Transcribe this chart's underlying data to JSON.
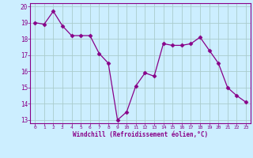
{
  "x": [
    0,
    1,
    2,
    3,
    4,
    5,
    6,
    7,
    8,
    9,
    10,
    11,
    12,
    13,
    14,
    15,
    16,
    17,
    18,
    19,
    20,
    21,
    22,
    23
  ],
  "y": [
    19.0,
    18.9,
    19.7,
    18.8,
    18.2,
    18.2,
    18.2,
    17.1,
    16.5,
    13.0,
    13.5,
    15.1,
    15.9,
    15.7,
    17.7,
    17.6,
    17.6,
    17.7,
    18.1,
    17.3,
    16.5,
    15.0,
    14.5,
    14.1
  ],
  "ylim": [
    12.8,
    20.2
  ],
  "xlim": [
    -0.5,
    23.5
  ],
  "yticks": [
    13,
    14,
    15,
    16,
    17,
    18,
    19,
    20
  ],
  "xticks": [
    0,
    1,
    2,
    3,
    4,
    5,
    6,
    7,
    8,
    9,
    10,
    11,
    12,
    13,
    14,
    15,
    16,
    17,
    18,
    19,
    20,
    21,
    22,
    23
  ],
  "xlabel": "Windchill (Refroidissement éolien,°C)",
  "line_color": "#880088",
  "marker": "D",
  "bg_color": "#cceeff",
  "grid_color": "#aacccc",
  "spine_color": "#880088"
}
